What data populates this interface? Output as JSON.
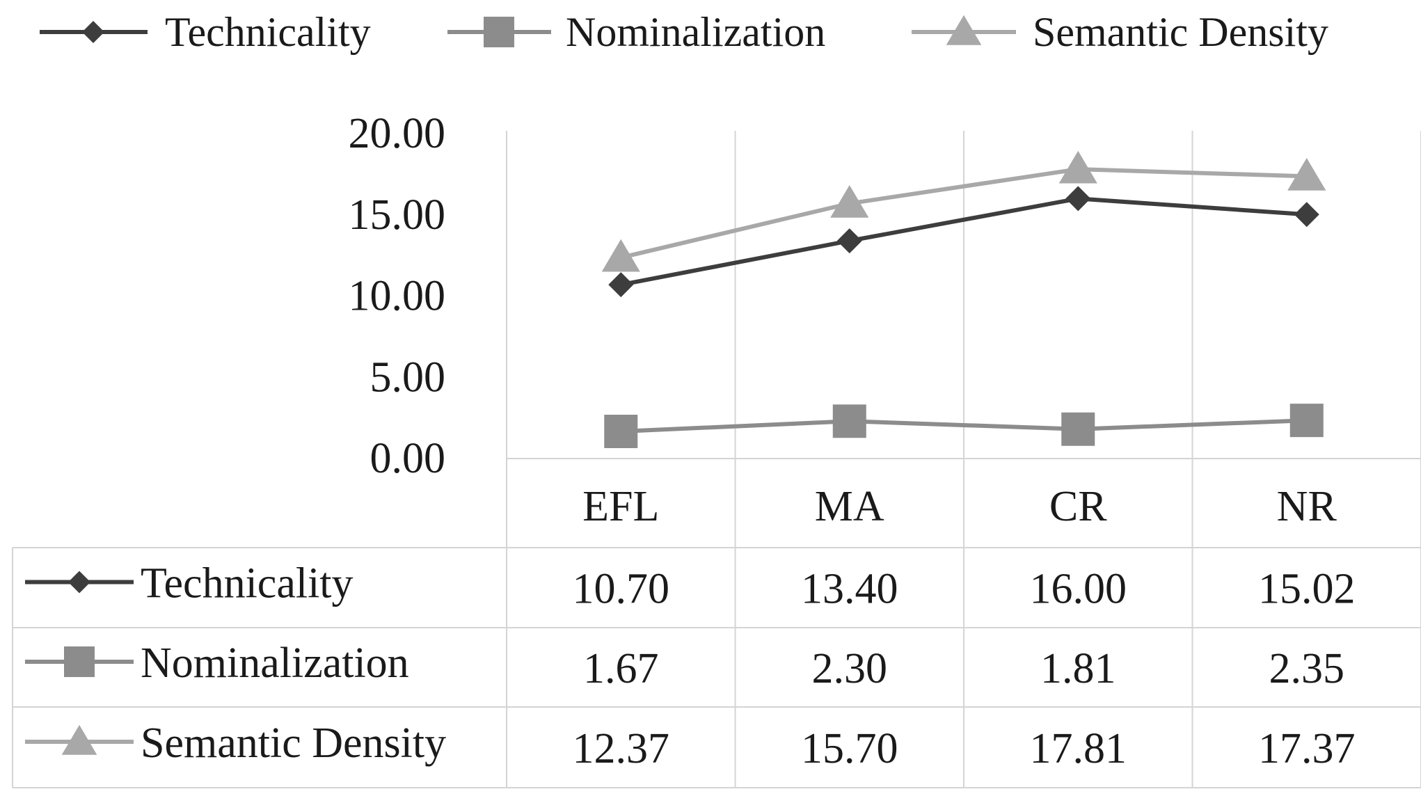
{
  "chart_data": {
    "type": "line",
    "title": "",
    "xlabel": "",
    "ylabel": "",
    "categories": [
      "EFL",
      "MA",
      "CR",
      "NR"
    ],
    "ylim": [
      0,
      20
    ],
    "yticks": [
      0,
      5,
      10,
      15,
      20
    ],
    "ytick_labels": [
      "0.00",
      "5.00",
      "10.00",
      "15.00",
      "20.00"
    ],
    "grid": "vertical",
    "legend_position": "top",
    "data_table": true,
    "series": [
      {
        "name": "Technicality",
        "values": [
          10.7,
          13.4,
          16.0,
          15.02
        ],
        "value_labels": [
          "10.70",
          "13.40",
          "16.00",
          "15.02"
        ],
        "marker": "diamond",
        "color": "#3d3d3d"
      },
      {
        "name": "Nominalization",
        "values": [
          1.67,
          2.3,
          1.81,
          2.35
        ],
        "value_labels": [
          "1.67",
          "2.30",
          "1.81",
          "2.35"
        ],
        "marker": "square",
        "color": "#8c8c8c"
      },
      {
        "name": "Semantic Density",
        "values": [
          12.37,
          15.7,
          17.81,
          17.37
        ],
        "value_labels": [
          "12.37",
          "15.70",
          "17.81",
          "17.37"
        ],
        "marker": "triangle",
        "color": "#a8a8a8"
      }
    ]
  }
}
